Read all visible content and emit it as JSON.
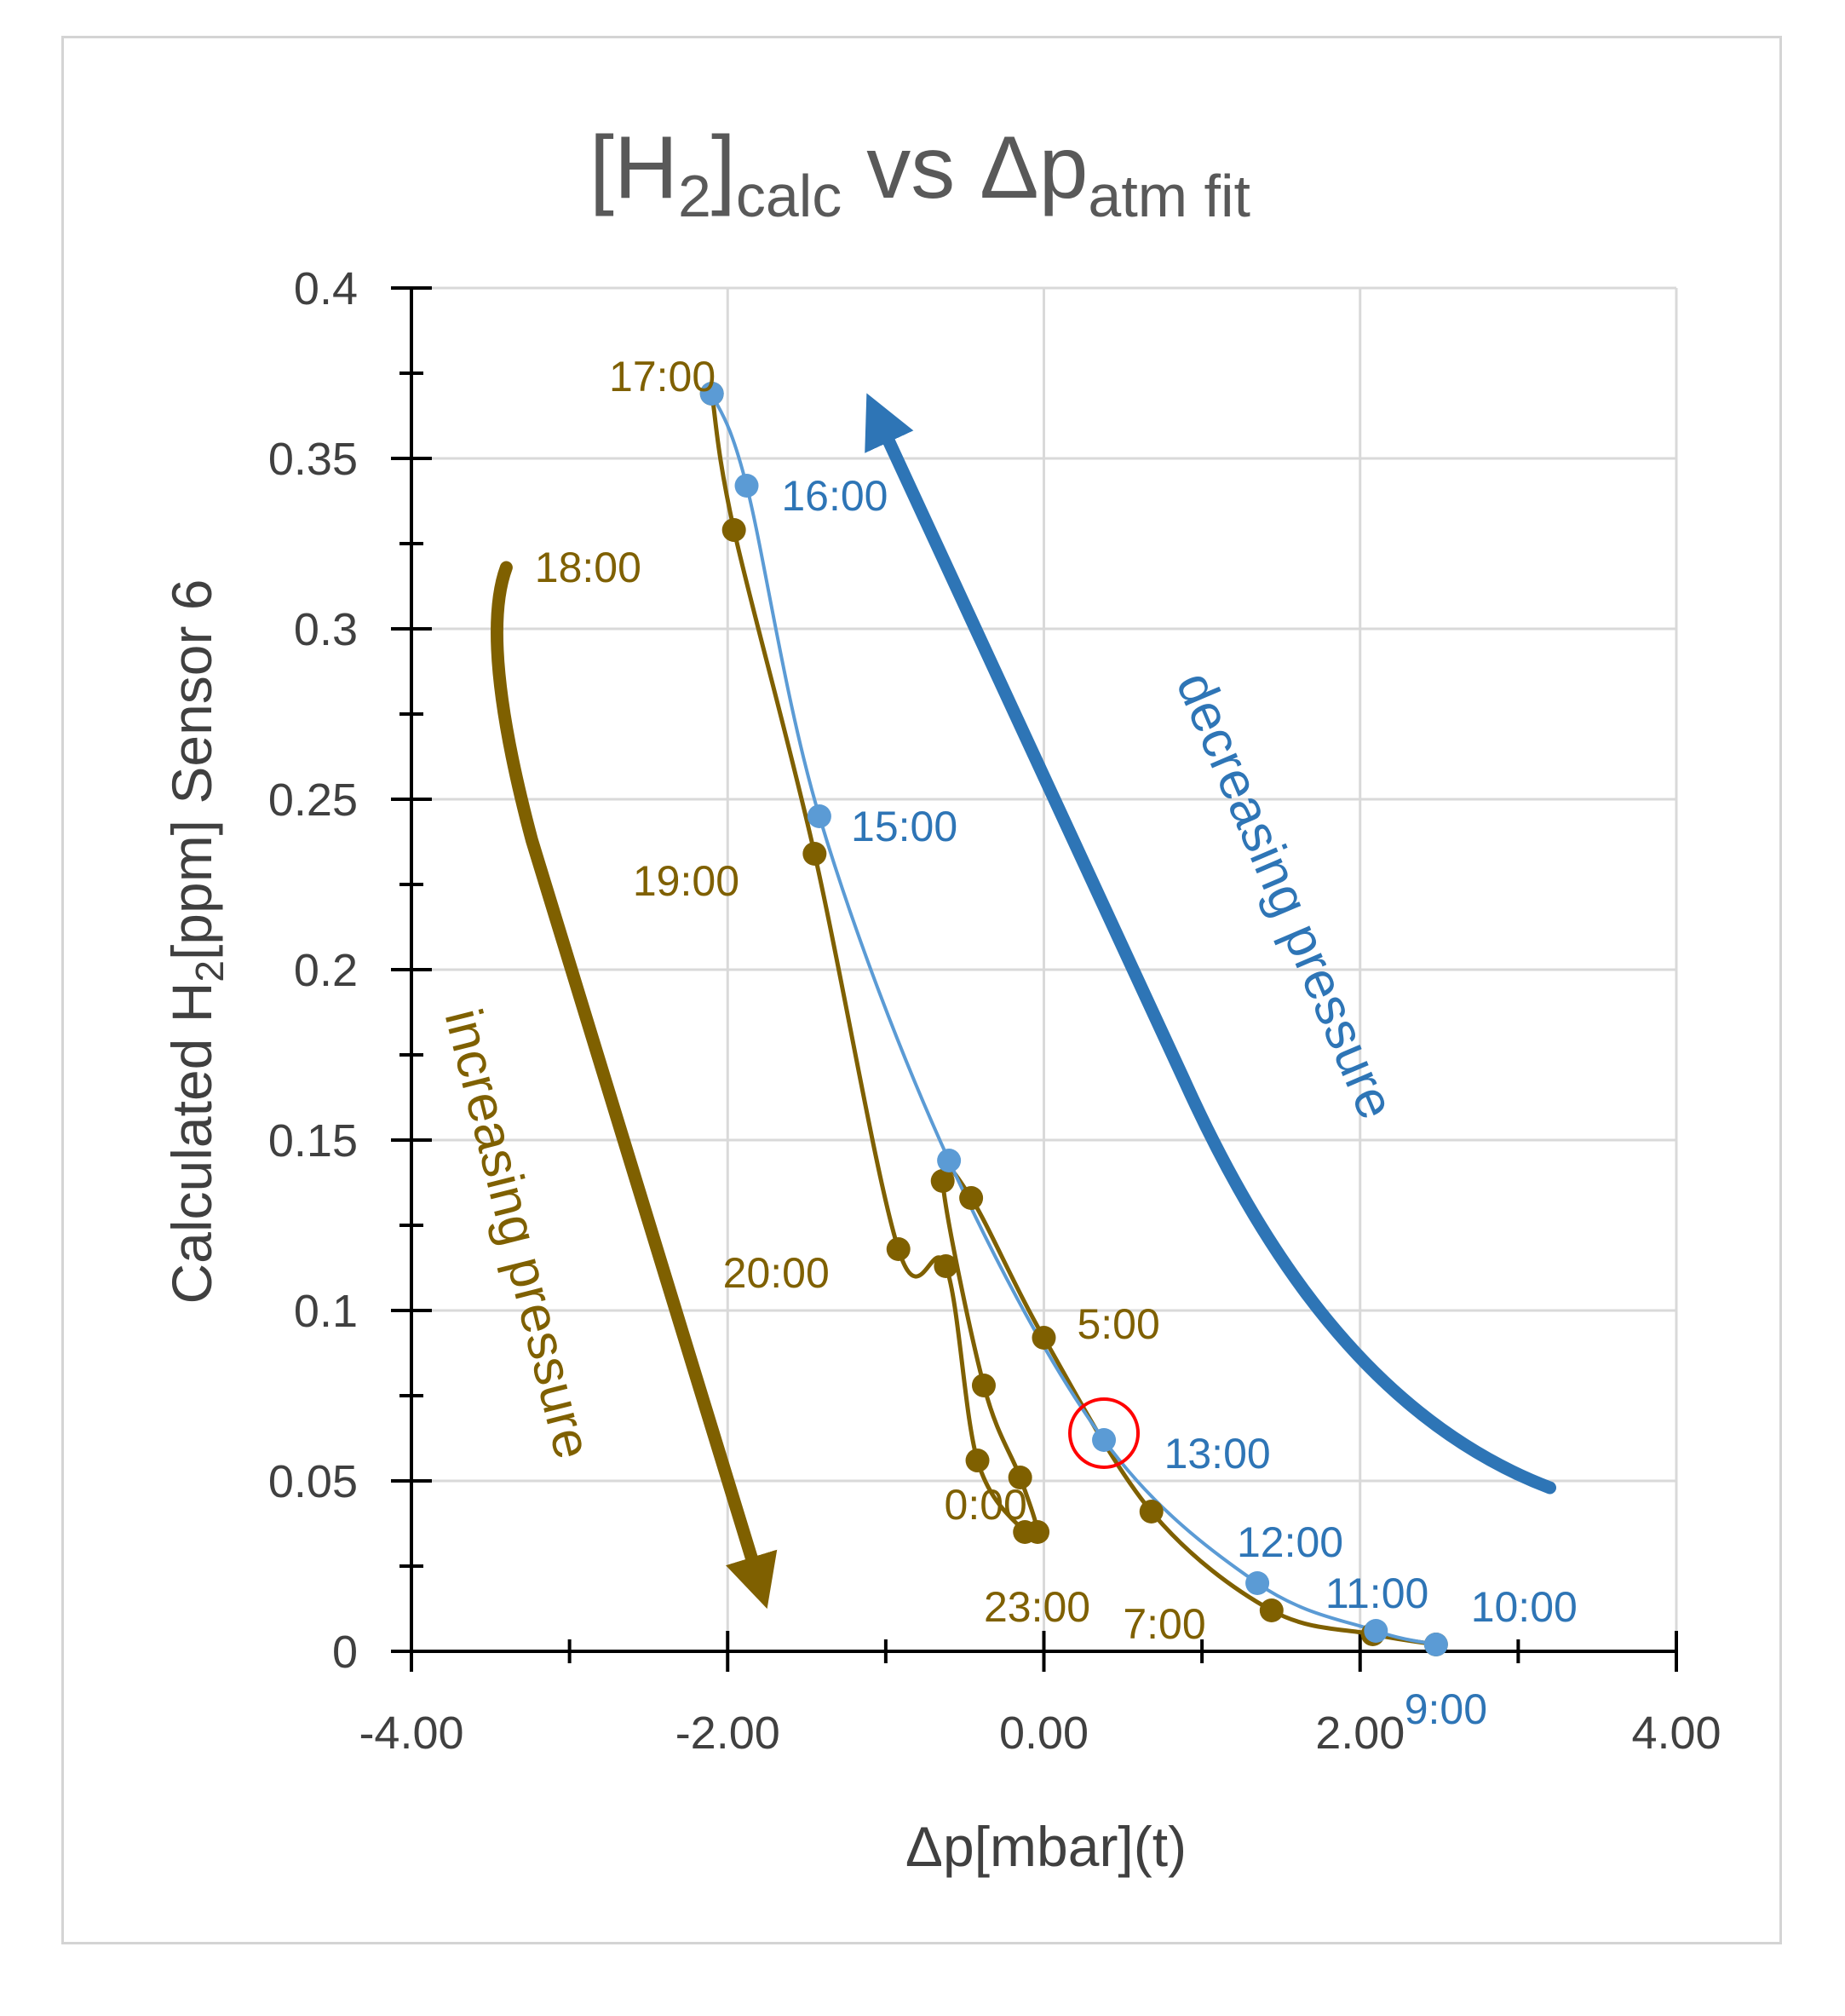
{
  "chart_data": {
    "type": "scatter",
    "title": {
      "main_open": "[H",
      "main_sub": "2",
      "main_close": "]",
      "calc_sub": "calc",
      "vs": " vs ",
      "delta_p": "Δp",
      "fit_sub": "atm fit"
    },
    "xlabel": "Δp[mbar](t)",
    "ylabel": {
      "prefix": "Calculated H",
      "sub": "2",
      "suffix": "[ppm] Sensor 6"
    },
    "xlim": [
      -4,
      4
    ],
    "ylim": [
      0,
      0.4
    ],
    "x_ticks": [
      -4,
      -2,
      0,
      2,
      4
    ],
    "x_tick_labels": [
      "-4.00",
      "-2.00",
      "0.00",
      "2.00",
      "4.00"
    ],
    "y_ticks": [
      0,
      0.05,
      0.1,
      0.15,
      0.2,
      0.25,
      0.3,
      0.35,
      0.4
    ],
    "y_tick_labels": [
      "0",
      "0.05",
      "0.1",
      "0.15",
      "0.2",
      "0.25",
      "0.3",
      "0.35",
      "0.4"
    ],
    "grid": true,
    "series": [
      {
        "name": "decreasing pressure (blue)",
        "color": "#5b9bd5",
        "points": [
          {
            "x": 2.48,
            "y": 0.002
          },
          {
            "x": 2.1,
            "y": 0.006
          },
          {
            "x": 1.35,
            "y": 0.02
          },
          {
            "x": 0.38,
            "y": 0.062
          },
          {
            "x": -0.6,
            "y": 0.144
          },
          {
            "x": -1.42,
            "y": 0.245
          },
          {
            "x": -1.88,
            "y": 0.342
          },
          {
            "x": -2.1,
            "y": 0.369
          }
        ]
      },
      {
        "name": "increasing pressure (brown)",
        "color": "#7f6000",
        "points": [
          {
            "x": -2.1,
            "y": 0.369
          },
          {
            "x": -1.96,
            "y": 0.329
          },
          {
            "x": -1.45,
            "y": 0.234
          },
          {
            "x": -0.92,
            "y": 0.118
          },
          {
            "x": -0.62,
            "y": 0.113
          },
          {
            "x": -0.42,
            "y": 0.056
          },
          {
            "x": -0.12,
            "y": 0.035
          },
          {
            "x": -0.04,
            "y": 0.035
          },
          {
            "x": -0.15,
            "y": 0.051
          },
          {
            "x": -0.38,
            "y": 0.078
          },
          {
            "x": -0.64,
            "y": 0.138
          },
          {
            "x": -0.46,
            "y": 0.133
          },
          {
            "x": 0.0,
            "y": 0.092
          },
          {
            "x": 0.68,
            "y": 0.041
          },
          {
            "x": 1.44,
            "y": 0.012
          },
          {
            "x": 2.08,
            "y": 0.005
          },
          {
            "x": 2.48,
            "y": 0.002
          }
        ]
      }
    ],
    "time_labels": [
      {
        "text": "17:00",
        "x": -2.75,
        "y": 0.374,
        "color": "#7f6000"
      },
      {
        "text": "16:00",
        "x": -1.66,
        "y": 0.339,
        "color": "#2e75b6"
      },
      {
        "text": "18:00",
        "x": -3.22,
        "y": 0.318,
        "color": "#7f6000"
      },
      {
        "text": "15:00",
        "x": -1.22,
        "y": 0.242,
        "color": "#2e75b6"
      },
      {
        "text": "19:00",
        "x": -2.6,
        "y": 0.226,
        "color": "#7f6000"
      },
      {
        "text": "20:00",
        "x": -2.03,
        "y": 0.111,
        "color": "#7f6000"
      },
      {
        "text": "5:00",
        "x": 0.21,
        "y": 0.096,
        "color": "#7f6000"
      },
      {
        "text": "13:00",
        "x": 0.76,
        "y": 0.058,
        "color": "#2e75b6"
      },
      {
        "text": "0:00",
        "x": -0.63,
        "y": 0.043,
        "color": "#7f6000"
      },
      {
        "text": "12:00",
        "x": 1.22,
        "y": 0.032,
        "color": "#2e75b6"
      },
      {
        "text": "11:00",
        "x": 1.78,
        "y": 0.017,
        "color": "#2e75b6"
      },
      {
        "text": "23:00",
        "x": -0.38,
        "y": 0.013,
        "color": "#7f6000"
      },
      {
        "text": "7:00",
        "x": 0.5,
        "y": 0.008,
        "color": "#7f6000"
      },
      {
        "text": "10:00",
        "x": 2.7,
        "y": 0.013,
        "color": "#2e75b6"
      },
      {
        "text": "9:00",
        "x": 2.28,
        "y": -0.017,
        "color": "#2e75b6"
      }
    ],
    "annotations": [
      {
        "text": "increasing pressure",
        "color": "#7f6000",
        "arrow": "down",
        "arrow_from": {
          "x": -3.4,
          "y": 0.318
        },
        "arrow_to": {
          "x": -1.8,
          "y": 0.02
        }
      },
      {
        "text": "decreasing pressure",
        "color": "#2e75b6",
        "arrow": "up",
        "arrow_from": {
          "x": 3.2,
          "y": 0.048
        },
        "arrow_to": {
          "x": -1.05,
          "y": 0.362
        }
      }
    ],
    "highlight": {
      "x": 0.38,
      "y": 0.064,
      "color": "#ff0000",
      "shape": "circle"
    }
  }
}
